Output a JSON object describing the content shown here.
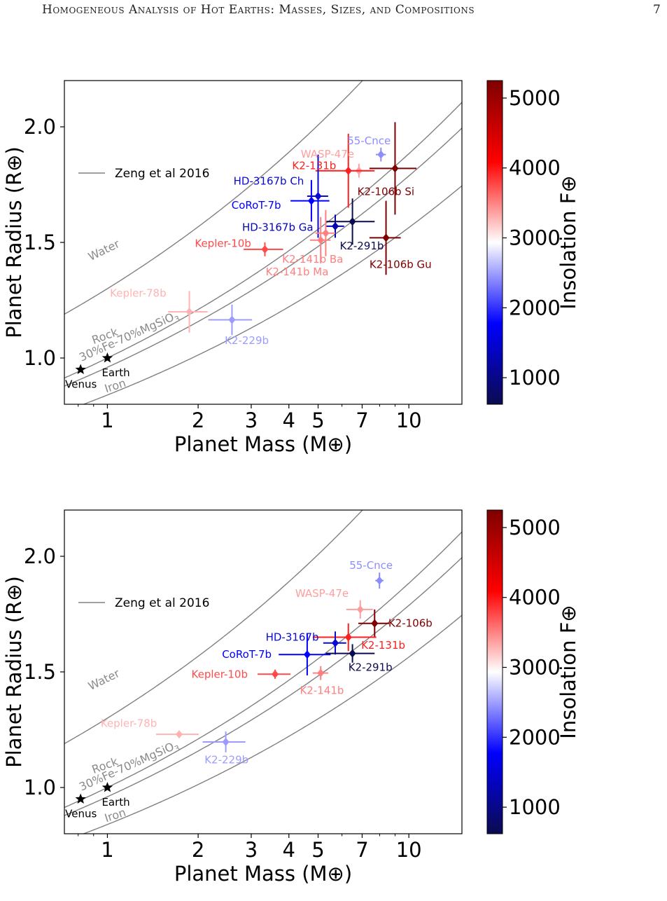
{
  "header": {
    "running_title": "Homogeneous Analysis of Hot Earths: Masses, Sizes, and Compositions",
    "page_number": "7"
  },
  "colorbar": {
    "label": "Insolation F⊕",
    "ticks": [
      1000,
      2000,
      3000,
      4000,
      5000
    ],
    "range": [
      620,
      5250
    ],
    "colors": {
      "low": "#0b0b4f",
      "blue": "#0000ff",
      "mid": "#ffffff",
      "red": "#ff0000",
      "high": "#7f0000"
    }
  },
  "chart_data": [
    {
      "type": "scatter",
      "xlabel": "Planet Mass (M⊕)",
      "ylabel": "Planet Radius (R⊕)",
      "x_scale": "log",
      "xlim": [
        0.72,
        15
      ],
      "ylim": [
        0.8,
        2.2
      ],
      "x_ticks": [
        1,
        2,
        3,
        4,
        5,
        7,
        10
      ],
      "y_ticks": [
        1.0,
        1.5,
        2.0
      ],
      "legend": {
        "label": "Zeng et al 2016",
        "placement": "upper-left"
      },
      "model_curves": [
        {
          "label": "Water",
          "r_at_1": 1.3
        },
        {
          "label": "Rock",
          "r_at_1": 1.0
        },
        {
          "label": "30%Fe-70%MgSiO3",
          "r_at_1": 0.96
        },
        {
          "label": "Iron",
          "r_at_1": 0.84
        }
      ],
      "reference_points": [
        {
          "name": "Venus",
          "mass": 0.815,
          "radius": 0.95
        },
        {
          "name": "Earth",
          "mass": 1.0,
          "radius": 1.0
        }
      ],
      "planets": [
        {
          "name": "55-Cnce",
          "mass": 8.08,
          "mass_err": 0.31,
          "radius": 1.88,
          "radius_err": 0.03,
          "insolation": 2450,
          "color": "#8c8cff"
        },
        {
          "name": "WASP-47e",
          "mass": 6.83,
          "mass_err": 0.66,
          "radius": 1.81,
          "radius_err": 0.03,
          "insolation": 3400,
          "color": "#ff9e9e"
        },
        {
          "name": "K2-131b",
          "mass": 6.3,
          "mass_err": 1.4,
          "radius": 1.81,
          "radius_err": 0.16,
          "insolation": 4250,
          "color": "#ff1f1f"
        },
        {
          "name": "K2-106b Si",
          "mass": 9.0,
          "mass_err": 1.6,
          "radius": 1.82,
          "radius_err": 0.2,
          "insolation": 5200,
          "color": "#7f0000"
        },
        {
          "name": "HD-3167b Ch",
          "mass": 5.0,
          "mass_err": 0.4,
          "radius": 1.7,
          "radius_err": 0.18,
          "insolation": 1450,
          "color": "#0a0ad2"
        },
        {
          "name": "CoRoT-7b",
          "mass": 4.75,
          "mass_err": 0.7,
          "radius": 1.68,
          "radius_err": 0.09,
          "insolation": 1650,
          "color": "#0000ff"
        },
        {
          "name": "HD-3167b Ga",
          "mass": 5.7,
          "mass_err": 0.4,
          "radius": 1.57,
          "radius_err": 0.05,
          "insolation": 1300,
          "color": "#0505b4"
        },
        {
          "name": "K2-291b",
          "mass": 6.5,
          "mass_err": 1.2,
          "radius": 1.59,
          "radius_err": 0.1,
          "insolation": 700,
          "color": "#0b0b4f"
        },
        {
          "name": "K2-106b Gu",
          "mass": 8.4,
          "mass_err": 1.0,
          "radius": 1.52,
          "radius_err": 0.16,
          "insolation": 5100,
          "color": "#800000"
        },
        {
          "name": "Kepler-10b",
          "mass": 3.33,
          "mass_err": 0.5,
          "radius": 1.47,
          "radius_err": 0.03,
          "insolation": 3850,
          "color": "#ff4a4a"
        },
        {
          "name": "K2-141b Ba",
          "mass": 5.3,
          "mass_err": 0.4,
          "radius": 1.54,
          "radius_err": 0.1,
          "insolation": 3500,
          "color": "#ff8080"
        },
        {
          "name": "K2-141b Ma",
          "mass": 5.1,
          "mass_err": 0.4,
          "radius": 1.51,
          "radius_err": 0.1,
          "insolation": 3500,
          "color": "#ff8080"
        },
        {
          "name": "Kepler-78b",
          "mass": 1.87,
          "mass_err": 0.28,
          "radius": 1.2,
          "radius_err": 0.09,
          "insolation": 3350,
          "color": "#ffb3b3"
        },
        {
          "name": "K2-229b",
          "mass": 2.59,
          "mass_err": 0.43,
          "radius": 1.165,
          "radius_err": 0.066,
          "insolation": 2450,
          "color": "#9c9cff"
        }
      ],
      "labels": [
        {
          "text": "55-Cnce",
          "color": "#8c8cff",
          "mass": 6.25,
          "radius": 1.925
        },
        {
          "text": "WASP-47e",
          "color": "#ff9e9e",
          "mass": 4.38,
          "radius": 1.867
        },
        {
          "text": "K2-131b",
          "color": "#ff1f1f",
          "mass": 4.1,
          "radius": 1.817
        },
        {
          "text": "K2-106b Si",
          "color": "#7f0000",
          "mass": 6.75,
          "radius": 1.705
        },
        {
          "text": "HD-3167b Ch",
          "color": "#0a0ad2",
          "mass": 2.62,
          "radius": 1.75
        },
        {
          "text": "CoRoT-7b",
          "color": "#0000ff",
          "mass": 2.58,
          "radius": 1.645
        },
        {
          "text": "HD-3167b Ga",
          "color": "#0505b4",
          "mass": 2.8,
          "radius": 1.55
        },
        {
          "text": "K2-291b",
          "color": "#0b0b4f",
          "mass": 5.9,
          "radius": 1.47
        },
        {
          "text": "K2-106b Gu",
          "color": "#800000",
          "mass": 7.4,
          "radius": 1.39
        },
        {
          "text": "Kepler-10b",
          "color": "#ff4a4a",
          "mass": 1.95,
          "radius": 1.48
        },
        {
          "text": "K2-141b Ba",
          "color": "#ff8080",
          "mass": 3.8,
          "radius": 1.412
        },
        {
          "text": "K2-141b Ma",
          "color": "#ff8080",
          "mass": 3.35,
          "radius": 1.357
        },
        {
          "text": "Kepler-78b",
          "color": "#ffb3b3",
          "mass": 1.02,
          "radius": 1.265
        },
        {
          "text": "K2-229b",
          "color": "#9c9cff",
          "mass": 2.45,
          "radius": 1.06
        }
      ]
    },
    {
      "type": "scatter",
      "xlabel": "Planet Mass (M⊕)",
      "ylabel": "Planet Radius (R⊕)",
      "x_scale": "log",
      "xlim": [
        0.72,
        15
      ],
      "ylim": [
        0.8,
        2.2
      ],
      "x_ticks": [
        1,
        2,
        3,
        4,
        5,
        7,
        10
      ],
      "y_ticks": [
        1.0,
        1.5,
        2.0
      ],
      "legend": {
        "label": "Zeng et al 2016",
        "placement": "upper-left"
      },
      "model_curves": [
        {
          "label": "Water",
          "r_at_1": 1.3
        },
        {
          "label": "Rock",
          "r_at_1": 1.0
        },
        {
          "label": "30%Fe-70%MgSiO3",
          "r_at_1": 0.96
        },
        {
          "label": "Iron",
          "r_at_1": 0.84
        }
      ],
      "reference_points": [
        {
          "name": "Venus",
          "mass": 0.815,
          "radius": 0.95
        },
        {
          "name": "Earth",
          "mass": 1.0,
          "radius": 1.0
        }
      ],
      "planets": [
        {
          "name": "55-Cnce",
          "mass": 7.99,
          "mass_err": 0.25,
          "radius": 1.895,
          "radius_err": 0.035,
          "insolation": 2450,
          "color": "#8c8cff"
        },
        {
          "name": "WASP-47e",
          "mass": 6.9,
          "mass_err": 0.7,
          "radius": 1.77,
          "radius_err": 0.04,
          "insolation": 3400,
          "color": "#ff9e9e"
        },
        {
          "name": "K2-106b",
          "mass": 7.7,
          "mass_err": 0.9,
          "radius": 1.71,
          "radius_err": 0.06,
          "insolation": 5200,
          "color": "#7f0000"
        },
        {
          "name": "K2-131b",
          "mass": 6.3,
          "mass_err": 1.5,
          "radius": 1.65,
          "radius_err": 0.06,
          "insolation": 4250,
          "color": "#ff1f1f"
        },
        {
          "name": "HD-3167b",
          "mass": 5.7,
          "mass_err": 0.5,
          "radius": 1.625,
          "radius_err": 0.05,
          "insolation": 1450,
          "color": "#0a0ad2"
        },
        {
          "name": "CoRoT-7b",
          "mass": 4.6,
          "mass_err": 0.9,
          "radius": 1.575,
          "radius_err": 0.09,
          "insolation": 1650,
          "color": "#0000ff"
        },
        {
          "name": "K2-291b",
          "mass": 6.5,
          "mass_err": 1.2,
          "radius": 1.58,
          "radius_err": 0.04,
          "insolation": 700,
          "color": "#0b0b4f"
        },
        {
          "name": "Kepler-10b",
          "mass": 3.6,
          "mass_err": 0.45,
          "radius": 1.49,
          "radius_err": 0.02,
          "insolation": 3850,
          "color": "#ff4a4a"
        },
        {
          "name": "K2-141b",
          "mass": 5.1,
          "mass_err": 0.3,
          "radius": 1.495,
          "radius_err": 0.03,
          "insolation": 3500,
          "color": "#ff8080"
        },
        {
          "name": "Kepler-78b",
          "mass": 1.73,
          "mass_err": 0.28,
          "radius": 1.23,
          "radius_err": 0.01,
          "insolation": 3350,
          "color": "#ffb3b3"
        },
        {
          "name": "K2-229b",
          "mass": 2.47,
          "mass_err": 0.4,
          "radius": 1.197,
          "radius_err": 0.045,
          "insolation": 2450,
          "color": "#9c9cff"
        }
      ],
      "labels": [
        {
          "text": "55-Cnce",
          "color": "#8c8cff",
          "mass": 6.35,
          "radius": 1.945
        },
        {
          "text": "WASP-47e",
          "color": "#ff9e9e",
          "mass": 4.2,
          "radius": 1.825
        },
        {
          "text": "K2-106b",
          "color": "#7f0000",
          "mass": 8.55,
          "radius": 1.695
        },
        {
          "text": "K2-131b",
          "color": "#ff1f1f",
          "mass": 6.95,
          "radius": 1.6
        },
        {
          "text": "HD-3167b",
          "color": "#0a0ad2",
          "mass": 3.35,
          "radius": 1.635
        },
        {
          "text": "CoRoT-7b",
          "color": "#0000ff",
          "mass": 2.4,
          "radius": 1.56
        },
        {
          "text": "K2-291b",
          "color": "#0b0b4f",
          "mass": 6.3,
          "radius": 1.505
        },
        {
          "text": "Kepler-10b",
          "color": "#ff4a4a",
          "mass": 1.9,
          "radius": 1.475
        },
        {
          "text": "K2-141b",
          "color": "#ff8080",
          "mass": 4.35,
          "radius": 1.405
        },
        {
          "text": "Kepler-78b",
          "color": "#ffb3b3",
          "mass": 0.95,
          "radius": 1.262
        },
        {
          "text": "K2-229b",
          "color": "#9c9cff",
          "mass": 2.1,
          "radius": 1.105
        }
      ]
    }
  ]
}
